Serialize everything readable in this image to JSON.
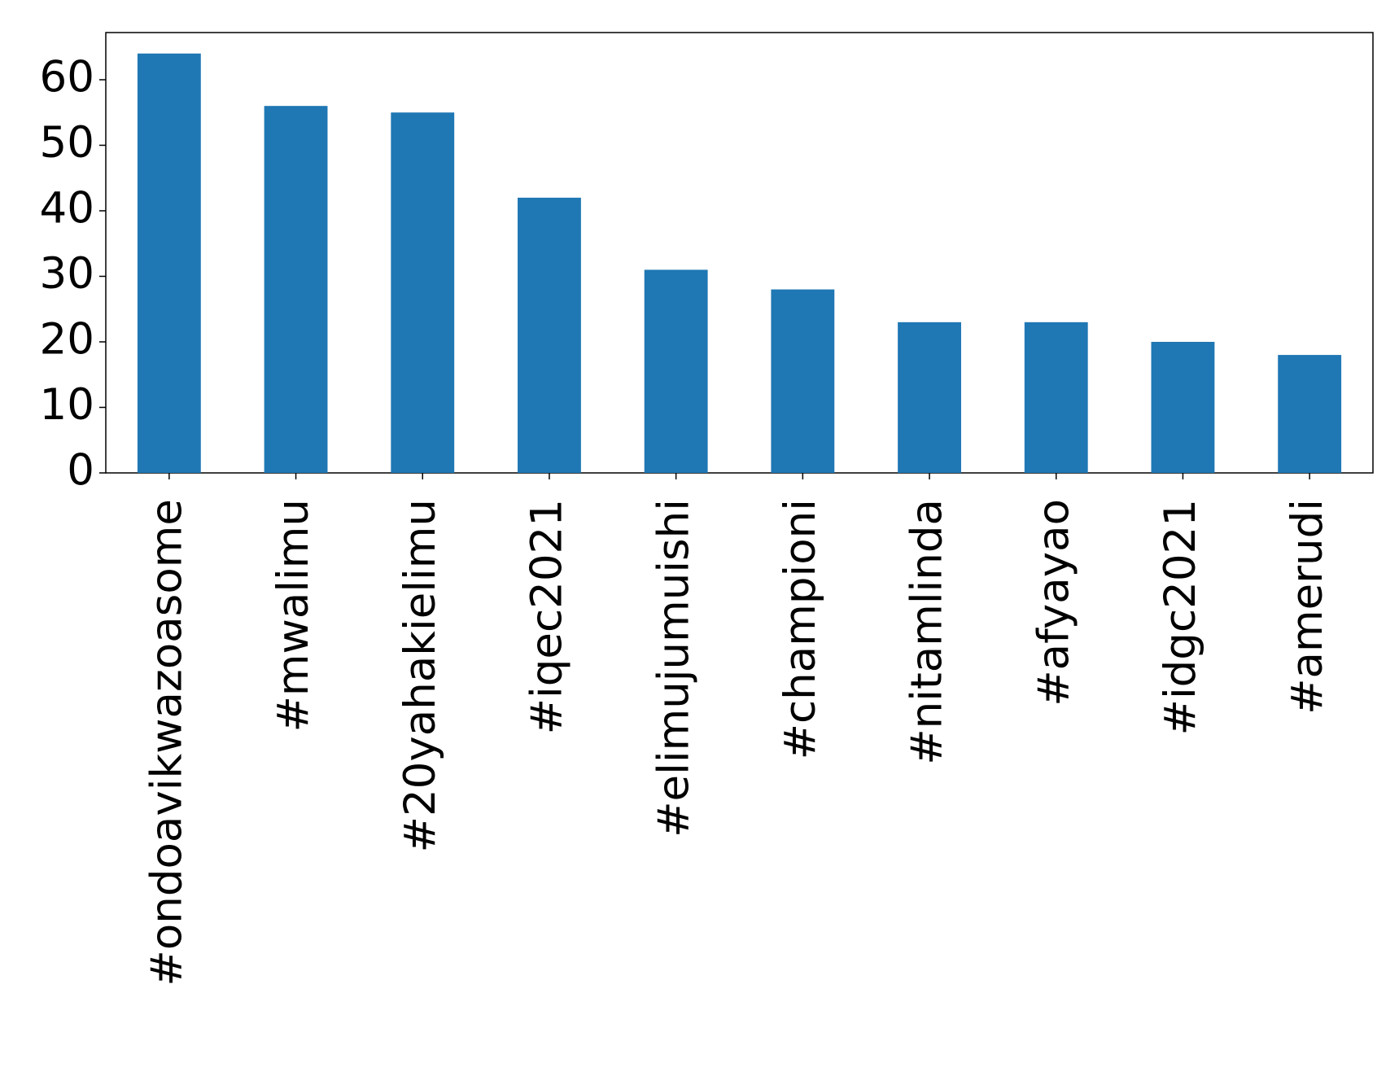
{
  "chart_data": {
    "type": "bar",
    "categories": [
      "#ondoavikwazoasome",
      "#mwalimu",
      "#20yahakielimu",
      "#iqec2021",
      "#elimujumuishi",
      "#championi",
      "#nitamlinda",
      "#afyayao",
      "#idgc2021",
      "#amerudi"
    ],
    "values": [
      64,
      56,
      55,
      42,
      31,
      28,
      23,
      23,
      20,
      18
    ],
    "color": "#1f77b4",
    "ylim": [
      0,
      67.2
    ],
    "yticks": [
      0,
      10,
      20,
      30,
      40,
      50,
      60
    ],
    "grid": false
  }
}
